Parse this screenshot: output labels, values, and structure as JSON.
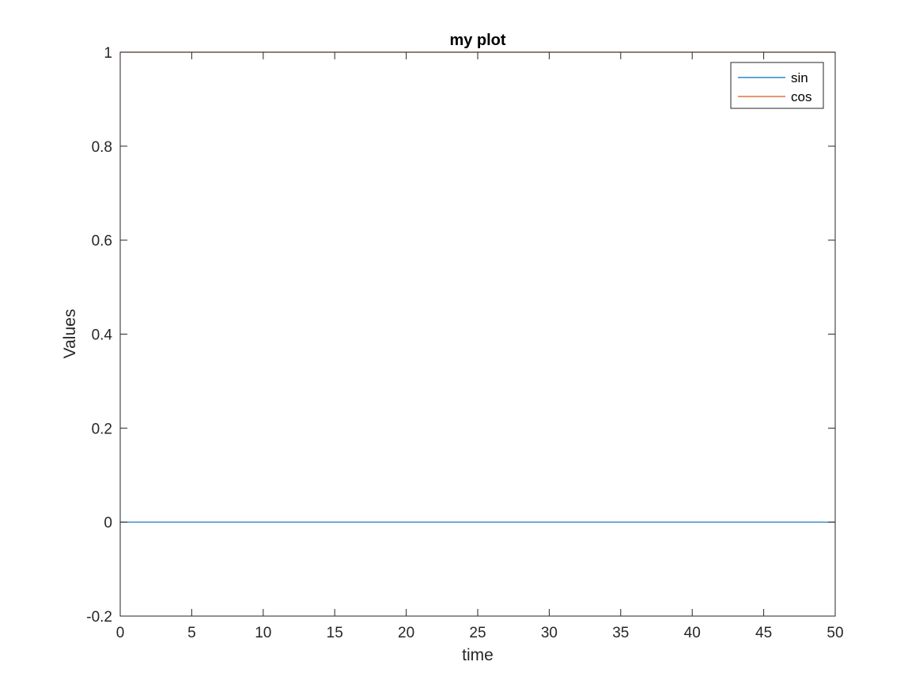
{
  "chart_data": {
    "type": "line",
    "title": "my plot",
    "xlabel": "time",
    "ylabel": "Values",
    "xlim": [
      0,
      50
    ],
    "ylim": [
      -0.2,
      1
    ],
    "xticks": [
      0,
      5,
      10,
      15,
      20,
      25,
      30,
      35,
      40,
      45,
      50
    ],
    "yticks": [
      -0.2,
      0,
      0.2,
      0.4,
      0.6,
      0.8,
      1
    ],
    "xtick_labels": [
      "0",
      "5",
      "10",
      "15",
      "20",
      "25",
      "30",
      "35",
      "40",
      "45",
      "50"
    ],
    "ytick_labels": [
      "-0.2",
      "0",
      "0.2",
      "0.4",
      "0.6",
      "0.8",
      "1"
    ],
    "grid": false,
    "legend_position": "top-right",
    "series": [
      {
        "name": "sin",
        "color": "#0072BD",
        "x": [
          0,
          50
        ],
        "y": [
          0,
          0
        ]
      },
      {
        "name": "cos",
        "color": "#D95319",
        "x": [
          0,
          50
        ],
        "y": [
          1,
          1
        ]
      }
    ]
  }
}
